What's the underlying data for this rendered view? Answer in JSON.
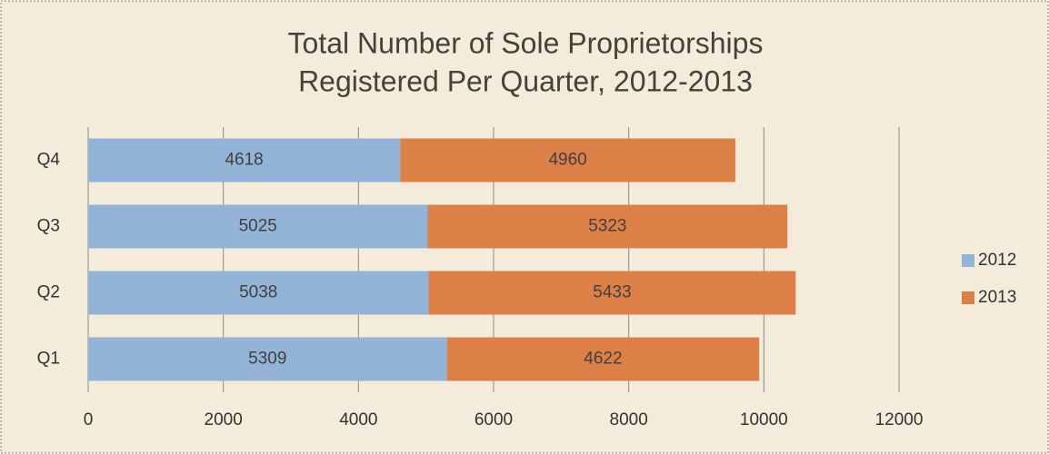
{
  "chart_data": {
    "type": "stacked_barh",
    "title": [
      "Total Number of Sole Proprietorships",
      "Registered Per Quarter, 2012-2013"
    ],
    "categories": [
      "Q1",
      "Q2",
      "Q3",
      "Q4"
    ],
    "series": [
      {
        "name": "2012",
        "color": "#93b4d6",
        "values": [
          5309,
          5038,
          5025,
          4618
        ]
      },
      {
        "name": "2013",
        "color": "#dd8047",
        "values": [
          4622,
          5433,
          5323,
          4960
        ]
      }
    ],
    "xlim": [
      0,
      12000
    ],
    "xticks": [
      0,
      2000,
      4000,
      6000,
      8000,
      10000,
      12000
    ],
    "grid": true,
    "legend": "right"
  }
}
